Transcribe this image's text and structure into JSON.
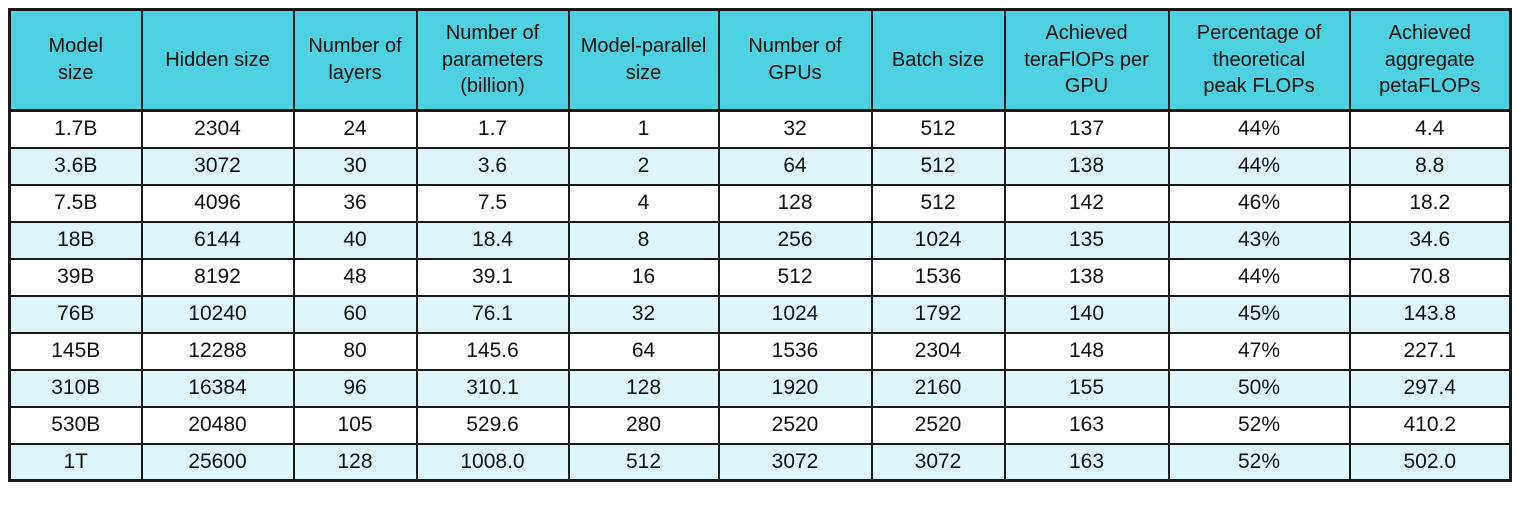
{
  "chart_data": {
    "type": "table",
    "columns": [
      "Model size",
      "Hidden size",
      "Number of layers",
      "Number of parameters (billion)",
      "Model-parallel size",
      "Number of GPUs",
      "Batch size",
      "Achieved teraFlOPs per GPU",
      "Percentage of theoretical peak FLOPs",
      "Achieved aggregate petaFLOPs"
    ],
    "rows": [
      [
        "1.7B",
        "2304",
        "24",
        "1.7",
        "1",
        "32",
        "512",
        "137",
        "44%",
        "4.4"
      ],
      [
        "3.6B",
        "3072",
        "30",
        "3.6",
        "2",
        "64",
        "512",
        "138",
        "44%",
        "8.8"
      ],
      [
        "7.5B",
        "4096",
        "36",
        "7.5",
        "4",
        "128",
        "512",
        "142",
        "46%",
        "18.2"
      ],
      [
        "18B",
        "6144",
        "40",
        "18.4",
        "8",
        "256",
        "1024",
        "135",
        "43%",
        "34.6"
      ],
      [
        "39B",
        "8192",
        "48",
        "39.1",
        "16",
        "512",
        "1536",
        "138",
        "44%",
        "70.8"
      ],
      [
        "76B",
        "10240",
        "60",
        "76.1",
        "32",
        "1024",
        "1792",
        "140",
        "45%",
        "143.8"
      ],
      [
        "145B",
        "12288",
        "80",
        "145.6",
        "64",
        "1536",
        "2304",
        "148",
        "47%",
        "227.1"
      ],
      [
        "310B",
        "16384",
        "96",
        "310.1",
        "128",
        "1920",
        "2160",
        "155",
        "50%",
        "297.4"
      ],
      [
        "530B",
        "20480",
        "105",
        "529.6",
        "280",
        "2520",
        "2520",
        "163",
        "52%",
        "410.2"
      ],
      [
        "1T",
        "25600",
        "128",
        "1008.0",
        "512",
        "3072",
        "3072",
        "163",
        "52%",
        "502.0"
      ]
    ]
  },
  "header_lines": [
    "Model\nsize",
    "Hidden size",
    "Number of\nlayers",
    "Number of\nparameters\n(billion)",
    "Model-parallel\nsize",
    "Number of\nGPUs",
    "Batch size",
    "Achieved\nteraFlOPs per\nGPU",
    "Percentage of\ntheoretical\npeak FLOPs",
    "Achieved\naggregate\npetaFLOPs"
  ],
  "colors": {
    "header_bg": "#4dd0e1",
    "row_alt_bg": "#dff4f8",
    "row_bg": "#ffffff",
    "border_color": "#1a1a1a",
    "text_color": "#121212"
  }
}
